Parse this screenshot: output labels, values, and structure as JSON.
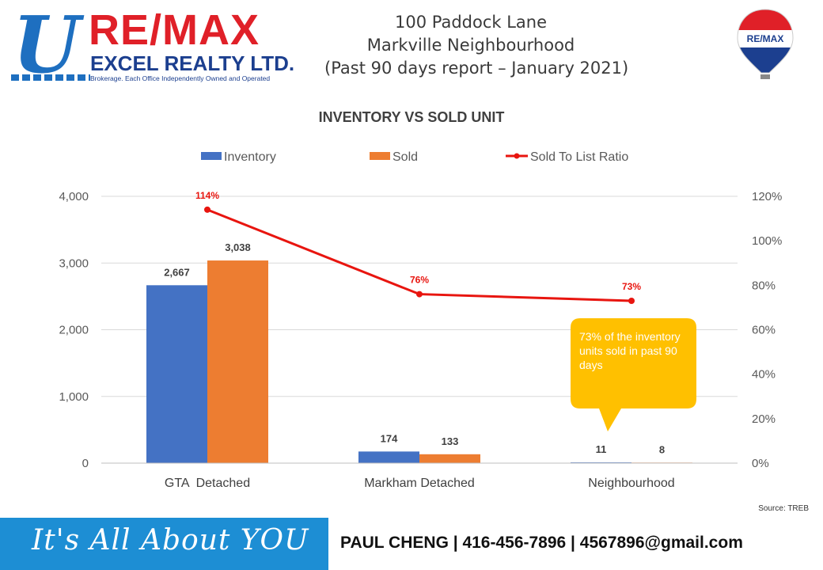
{
  "header": {
    "logo": {
      "brand": "RE/MAX",
      "office": "EXCEL REALTY LTD.",
      "tagline": "Brokerage. Each Office Independently Owned and Operated"
    },
    "title_lines": [
      "100 Paddock Lane",
      "Markville Neighbourhood",
      "(Past 90 days report – January 2021)"
    ],
    "balloon_label": "RE/MAX"
  },
  "chart_data": {
    "type": "bar",
    "title": "INVENTORY VS SOLD UNIT",
    "categories": [
      "GTA  Detached",
      "Markham Detached",
      "Neighbourhood"
    ],
    "series": [
      {
        "name": "Inventory",
        "values": [
          2667,
          174,
          11
        ],
        "labels": [
          "2,667",
          "174",
          "11"
        ],
        "color": "#4472c4"
      },
      {
        "name": "Sold",
        "values": [
          3038,
          133,
          8
        ],
        "labels": [
          "3,038",
          "133",
          "8"
        ],
        "color": "#ed7d31"
      }
    ],
    "line_series": {
      "name": "Sold To List Ratio",
      "values": [
        114,
        76,
        73
      ],
      "labels": [
        "114%",
        "76%",
        "73%"
      ],
      "color": "#e8150f",
      "axis": "right"
    },
    "ylim": [
      0,
      4000
    ],
    "y_ticks": [
      "0",
      "1,000",
      "2,000",
      "3,000",
      "4,000"
    ],
    "y2lim": [
      0,
      120
    ],
    "y2_ticks": [
      "0%",
      "20%",
      "40%",
      "60%",
      "80%",
      "100%",
      "120%"
    ],
    "legend_position": "top",
    "grid": true
  },
  "callout": {
    "text": "73% of the inventory units sold in past 90 days",
    "color": "#ffc000"
  },
  "source": "Source: TREB",
  "footer": {
    "slogan": "It's All About YOU",
    "contact": "PAUL CHENG | 416-456-7896 | 4567896@gmail.com",
    "background": "#1d8ed4"
  }
}
